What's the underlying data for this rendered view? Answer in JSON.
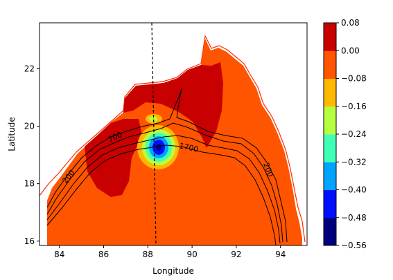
{
  "chart_data": {
    "type": "heatmap",
    "title": "",
    "xlabel": "Longitude",
    "ylabel": "Latitude",
    "xlim": [
      83.1,
      95.2
    ],
    "ylim": [
      15.85,
      23.6
    ],
    "xticks": [
      84,
      86,
      88,
      90,
      92,
      94
    ],
    "yticks": [
      16,
      18,
      20,
      22
    ],
    "grid": false,
    "colorbar": {
      "position": "right",
      "levels": [
        -0.56,
        -0.48,
        -0.4,
        -0.32,
        -0.24,
        -0.16,
        -0.08,
        0.0,
        0.08
      ],
      "labels": [
        "0.08",
        "0.00",
        "−0.08",
        "−0.16",
        "−0.24",
        "−0.32",
        "−0.40",
        "−0.48",
        "−0.56"
      ],
      "colors": [
        "#00007f",
        "#0010ff",
        "#00a4ff",
        "#40ffb6",
        "#b6ff40",
        "#ffb900",
        "#ff5400",
        "#c80000"
      ]
    },
    "field": {
      "background_level": "-0.08 to 0.00",
      "positive_regions_level": "0.00 to 0.08",
      "minimum": {
        "lon": 88.4,
        "lat": 19.3,
        "value_range": "-0.56 to -0.48"
      }
    },
    "contours": {
      "labels": [
        "200",
        "700",
        "1700",
        "200"
      ],
      "color": "#000000"
    },
    "transect_line": {
      "from": {
        "lon": 88.15,
        "lat": 23.6
      },
      "to": {
        "lon": 88.4,
        "lat": 15.85
      },
      "style": "dashed"
    }
  }
}
